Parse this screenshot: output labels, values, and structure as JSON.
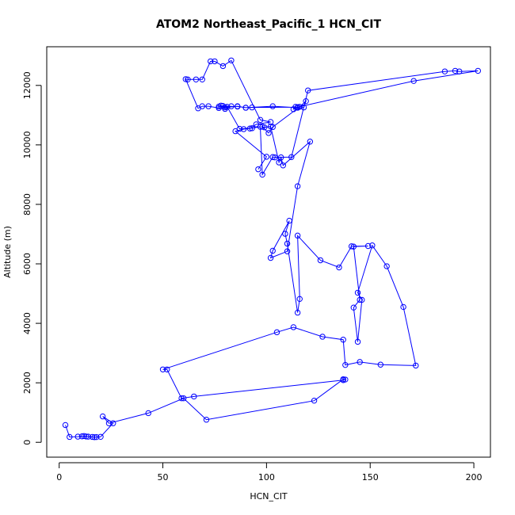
{
  "chart_data": {
    "type": "line",
    "title": "ATOM2 Northeast_Pacific_1 HCN_CIT",
    "xlabel": "HCN_CIT",
    "ylabel": "Altitude (m)",
    "xlim": [
      -6,
      208
    ],
    "ylim": [
      -500,
      13300
    ],
    "xticks": [
      0,
      50,
      100,
      150,
      200
    ],
    "yticks": [
      0,
      2000,
      4000,
      6000,
      8000,
      10000,
      12000
    ],
    "grid": false,
    "series_color": "#0000ff",
    "x": [
      3,
      5,
      9,
      11,
      12,
      13,
      14,
      16,
      17,
      18,
      20,
      26,
      21,
      24,
      43,
      60,
      71,
      123,
      137,
      138,
      137,
      65,
      59,
      52,
      50,
      105,
      113,
      127,
      137,
      138,
      145,
      155,
      172,
      166,
      158,
      151,
      144,
      146,
      144,
      142,
      145,
      142,
      149,
      141,
      135,
      126,
      115,
      116,
      115,
      110,
      109,
      111,
      103,
      102,
      110,
      115,
      121,
      108,
      107,
      106,
      102,
      99,
      98,
      101,
      103,
      116,
      119,
      118,
      113,
      114,
      115,
      103,
      90,
      86,
      77,
      83,
      80,
      78,
      79,
      81,
      87,
      93,
      97,
      98,
      103,
      104,
      112,
      120,
      186,
      191,
      193,
      202,
      171,
      115,
      93,
      90,
      86,
      80,
      77,
      72,
      69,
      67,
      61,
      62,
      66,
      69,
      73,
      75,
      79,
      83,
      97,
      102,
      95,
      92,
      89,
      85,
      100,
      96
    ],
    "y": [
      580,
      180,
      190,
      200,
      210,
      195,
      190,
      180,
      170,
      175,
      185,
      640,
      870,
      640,
      980,
      1480,
      760,
      1400,
      2120,
      2110,
      2090,
      1540,
      1480,
      2450,
      2450,
      3700,
      3870,
      3550,
      3450,
      2600,
      2700,
      2610,
      2580,
      4550,
      5920,
      6620,
      5030,
      4790,
      3380,
      4530,
      4790,
      6580,
      6600,
      6590,
      5880,
      6120,
      6950,
      4820,
      4360,
      6680,
      7010,
      7450,
      6440,
      6200,
      6420,
      8610,
      10110,
      9310,
      9580,
      9410,
      10620,
      10590,
      10610,
      10400,
      10600,
      11280,
      11470,
      11260,
      11200,
      11280,
      11250,
      11300,
      11250,
      11290,
      11290,
      11300,
      11210,
      11320,
      11310,
      11280,
      10540,
      10560,
      10610,
      9000,
      9590,
      9580,
      9590,
      11830,
      12470,
      12490,
      12470,
      12490,
      12150,
      11270,
      11260,
      11250,
      11300,
      11260,
      11240,
      11300,
      11300,
      11230,
      12210,
      12200,
      12200,
      12200,
      12810,
      12810,
      12650,
      12840,
      10840,
      10770,
      10690,
      10550,
      10530,
      10460,
      9600,
      9180
    ]
  }
}
